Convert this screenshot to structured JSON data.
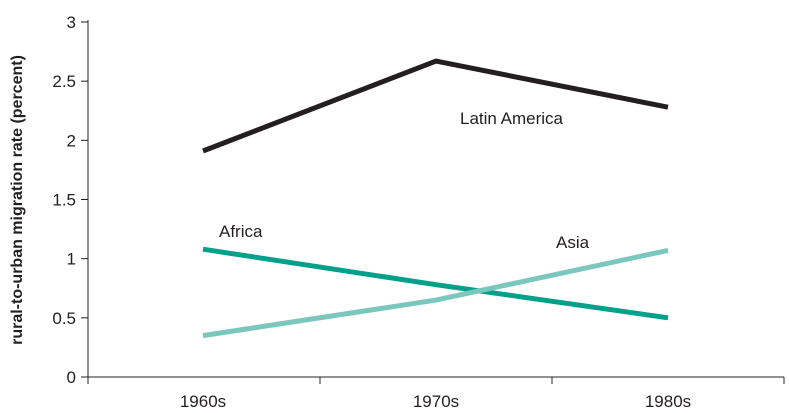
{
  "chart_data": {
    "type": "line",
    "title": "",
    "xlabel": "",
    "ylabel": "rural-to-urban migration rate (percent)",
    "categories": [
      "1960s",
      "1970s",
      "1980s"
    ],
    "ylim": [
      0,
      3
    ],
    "yticks": [
      0,
      0.5,
      1,
      1.5,
      2,
      2.5,
      3
    ],
    "ytick_labels": [
      "0",
      "0.5",
      "1",
      "1.5",
      "2",
      "2.5",
      "3"
    ],
    "grid": false,
    "legend": "none",
    "series": [
      {
        "name": "Latin America",
        "values": [
          1.91,
          2.67,
          2.28
        ],
        "color": "#231f20"
      },
      {
        "name": "Africa",
        "values": [
          1.08,
          0.78,
          0.5
        ],
        "color": "#00a08a"
      },
      {
        "name": "Asia",
        "values": [
          0.35,
          0.65,
          1.07
        ],
        "color": "#7cc7bd"
      }
    ]
  }
}
